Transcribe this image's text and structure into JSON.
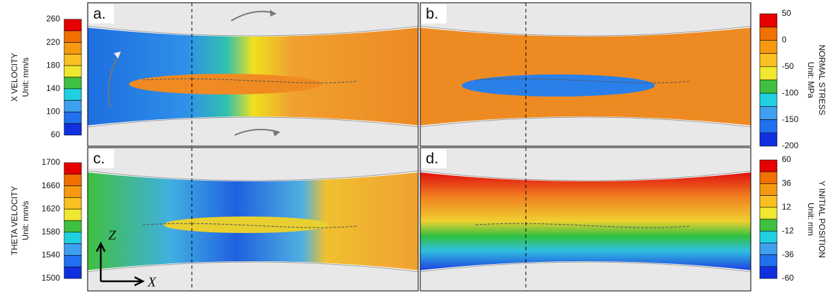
{
  "panels": [
    {
      "label": "a."
    },
    {
      "label": "b."
    },
    {
      "label": "c."
    },
    {
      "label": "d."
    }
  ],
  "colorbars": [
    {
      "title": "X VELOCITY",
      "unit": "Unit: mm/s",
      "ticks": [
        260,
        220,
        180,
        140,
        100,
        60
      ]
    },
    {
      "title": "NORMAL STRESS",
      "unit": "Unit: MPa",
      "ticks": [
        50,
        0,
        -50,
        -100,
        -150,
        -200
      ]
    },
    {
      "title": "THETA VELOCITY",
      "unit": "Unit: mm/s",
      "ticks": [
        1700,
        1660,
        1620,
        1580,
        1540,
        1500
      ]
    },
    {
      "title": "Y INITIAL POSITION",
      "unit": "Unit: mm",
      "ticks": [
        60,
        36,
        12,
        -12,
        -36,
        -60
      ]
    }
  ],
  "axes": {
    "vertical": "Z",
    "horizontal": "X"
  }
}
